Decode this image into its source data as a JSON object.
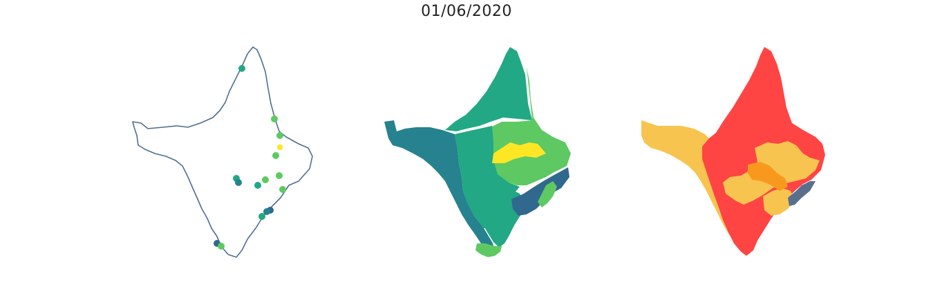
{
  "figure": {
    "title": "01/06/2020"
  },
  "colors": {
    "outline": "#4f6d8f",
    "viridis_dark_blue": "#31688e",
    "viridis_teal": "#26828e",
    "viridis_green": "#22a884",
    "viridis_light_green": "#5ec962",
    "viridis_yellow": "#fde725",
    "risk_red": "#ff4444",
    "risk_yellow": "#f8c450",
    "risk_orange": "#f8991e",
    "risk_slate": "#5a6f8c"
  },
  "panels": [
    {
      "name": "station-points",
      "type": "point-map",
      "point_levels": [
        "green",
        "light_green",
        "light_green",
        "yellow",
        "light_green",
        "green",
        "teal",
        "green",
        "light_green",
        "light_green",
        "light_green",
        "dark_blue",
        "teal",
        "green",
        "dark_blue",
        "light_green"
      ]
    },
    {
      "name": "zone-choropleth-viridis",
      "type": "choropleth",
      "legend": null
    },
    {
      "name": "zone-choropleth-risk",
      "type": "choropleth",
      "legend": null
    }
  ]
}
